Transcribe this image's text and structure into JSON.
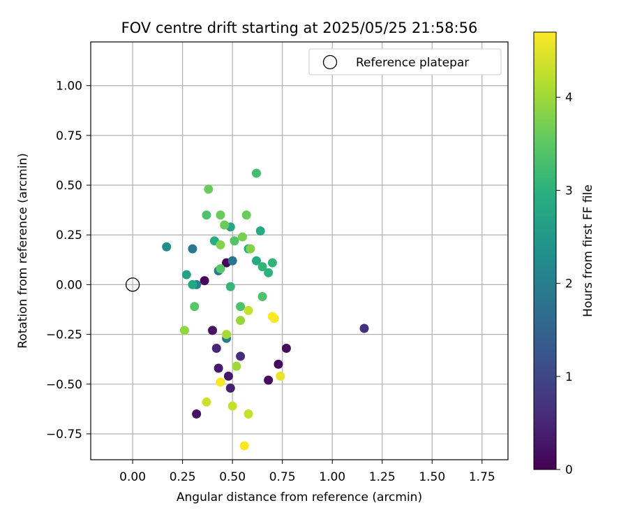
{
  "chart_data": {
    "type": "scatter",
    "title": "FOV centre drift starting at 2025/05/25 21:58:56",
    "xlabel": "Angular distance from reference (arcmin)",
    "ylabel": "Rotation from reference (arcmin)",
    "xlim": [
      -0.21,
      1.88
    ],
    "ylim": [
      -0.88,
      1.22
    ],
    "xticks": [
      0.0,
      0.25,
      0.5,
      0.75,
      1.0,
      1.25,
      1.5,
      1.75
    ],
    "xtick_labels": [
      "0.00",
      "0.25",
      "0.50",
      "0.75",
      "1.00",
      "1.25",
      "1.50",
      "1.75"
    ],
    "yticks": [
      1.0,
      0.75,
      0.5,
      0.25,
      0.0,
      -0.25,
      -0.5,
      -0.75
    ],
    "ytick_labels": [
      "1.00",
      "0.75",
      "0.50",
      "0.25",
      "0.00",
      "−0.25",
      "−0.50",
      "−0.75"
    ],
    "grid": true,
    "legend": {
      "label": "Reference platepar",
      "placement": "top-right"
    },
    "reference_point": {
      "x": 0.0,
      "y": 0.0
    },
    "colorbar": {
      "label": "Hours from first FF file",
      "range": [
        0,
        4.7
      ],
      "ticks": [
        0,
        1,
        2,
        3,
        4
      ],
      "tick_labels": [
        "0",
        "1",
        "2",
        "3",
        "4"
      ],
      "colormap": "viridis",
      "colors": [
        "#440154",
        "#472d7b",
        "#3b528b",
        "#2c728e",
        "#21918c",
        "#28ae80",
        "#5ec962",
        "#addc30",
        "#fde725"
      ]
    },
    "points": [
      {
        "x": 0.36,
        "y": 0.02,
        "c": 0.1
      },
      {
        "x": 0.47,
        "y": 0.11,
        "c": 0.1
      },
      {
        "x": 0.73,
        "y": -0.4,
        "c": 0.1
      },
      {
        "x": 0.77,
        "y": -0.32,
        "c": 0.15
      },
      {
        "x": 0.68,
        "y": -0.48,
        "c": 0.15
      },
      {
        "x": 0.32,
        "y": -0.65,
        "c": 0.2
      },
      {
        "x": 0.4,
        "y": -0.23,
        "c": 0.25
      },
      {
        "x": 0.48,
        "y": -0.46,
        "c": 0.3
      },
      {
        "x": 0.43,
        "y": -0.42,
        "c": 0.35
      },
      {
        "x": 0.49,
        "y": -0.52,
        "c": 0.4
      },
      {
        "x": 0.42,
        "y": -0.32,
        "c": 0.5
      },
      {
        "x": 0.54,
        "y": -0.36,
        "c": 0.6
      },
      {
        "x": 1.16,
        "y": -0.22,
        "c": 0.65
      },
      {
        "x": 0.5,
        "y": 0.12,
        "c": 1.8
      },
      {
        "x": 0.43,
        "y": 0.07,
        "c": 1.85
      },
      {
        "x": 0.3,
        "y": 0.18,
        "c": 1.9
      },
      {
        "x": 0.47,
        "y": -0.27,
        "c": 1.95
      },
      {
        "x": 0.32,
        "y": 0.0,
        "c": 2.0
      },
      {
        "x": 0.17,
        "y": 0.19,
        "c": 2.3
      },
      {
        "x": 0.27,
        "y": 0.05,
        "c": 2.7
      },
      {
        "x": 0.3,
        "y": 0.0,
        "c": 2.8
      },
      {
        "x": 0.49,
        "y": 0.29,
        "c": 2.75
      },
      {
        "x": 0.62,
        "y": 0.12,
        "c": 2.85
      },
      {
        "x": 0.64,
        "y": 0.27,
        "c": 2.85
      },
      {
        "x": 0.41,
        "y": 0.22,
        "c": 2.9
      },
      {
        "x": 0.58,
        "y": 0.18,
        "c": 2.9
      },
      {
        "x": 0.68,
        "y": 0.06,
        "c": 3.0
      },
      {
        "x": 0.65,
        "y": 0.09,
        "c": 3.05
      },
      {
        "x": 0.7,
        "y": 0.11,
        "c": 3.05
      },
      {
        "x": 0.49,
        "y": -0.01,
        "c": 3.1
      },
      {
        "x": 0.62,
        "y": 0.56,
        "c": 3.25
      },
      {
        "x": 0.65,
        "y": -0.06,
        "c": 3.35
      },
      {
        "x": 0.54,
        "y": -0.11,
        "c": 3.35
      },
      {
        "x": 0.37,
        "y": 0.35,
        "c": 3.35
      },
      {
        "x": 0.51,
        "y": 0.22,
        "c": 3.4
      },
      {
        "x": 0.44,
        "y": 0.08,
        "c": 3.45
      },
      {
        "x": 0.31,
        "y": -0.11,
        "c": 3.45
      },
      {
        "x": 0.38,
        "y": 0.48,
        "c": 3.6
      },
      {
        "x": 0.44,
        "y": 0.35,
        "c": 3.6
      },
      {
        "x": 0.46,
        "y": 0.3,
        "c": 3.6
      },
      {
        "x": 0.57,
        "y": 0.35,
        "c": 3.6
      },
      {
        "x": 0.55,
        "y": 0.24,
        "c": 3.7
      },
      {
        "x": 0.44,
        "y": 0.2,
        "c": 3.8
      },
      {
        "x": 0.59,
        "y": 0.18,
        "c": 3.8
      },
      {
        "x": 0.26,
        "y": -0.23,
        "c": 3.9
      },
      {
        "x": 0.54,
        "y": -0.18,
        "c": 3.95
      },
      {
        "x": 0.52,
        "y": -0.41,
        "c": 4.0
      },
      {
        "x": 0.47,
        "y": -0.25,
        "c": 4.05
      },
      {
        "x": 0.58,
        "y": -0.13,
        "c": 4.3
      },
      {
        "x": 0.58,
        "y": -0.65,
        "c": 4.3
      },
      {
        "x": 0.5,
        "y": -0.61,
        "c": 4.3
      },
      {
        "x": 0.37,
        "y": -0.59,
        "c": 4.35
      },
      {
        "x": 0.74,
        "y": -0.46,
        "c": 4.55
      },
      {
        "x": 0.71,
        "y": -0.17,
        "c": 4.65
      },
      {
        "x": 0.44,
        "y": -0.49,
        "c": 4.65
      },
      {
        "x": 0.56,
        "y": -0.81,
        "c": 4.7
      },
      {
        "x": 0.7,
        "y": -0.16,
        "c": 4.7
      }
    ]
  }
}
